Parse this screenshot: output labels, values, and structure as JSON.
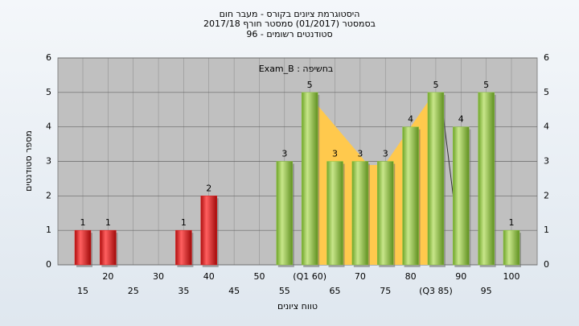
{
  "chart_data": {
    "type": "bar",
    "title": "היסטוגרמת ציונים בקורס - מעבר חום",
    "subtitle": "בסמסטר  (01/2017)  סמסטר חורף 2017/18",
    "subtitle2": "סטודנטים רשומים - 96",
    "annotation": "בחשיפה : Exam_B",
    "ylabel": "מספר סטודנטים",
    "xlabel": "טווח ציונים",
    "categories": [
      "15",
      "20",
      "25",
      "30",
      "35",
      "40",
      "45",
      "50",
      "55",
      "(Q1 60)",
      "65",
      "70",
      "75",
      "80",
      "(Q3 85)",
      "90",
      "95",
      "100"
    ],
    "values": [
      1,
      1,
      0,
      0,
      1,
      2,
      0,
      0,
      3,
      5,
      3,
      3,
      3,
      4,
      5,
      4,
      5,
      1
    ],
    "colors": [
      "#e02020",
      "#e02020",
      "#e02020",
      "#e02020",
      "#e02020",
      "#e02020",
      "#e02020",
      "#e02020",
      "#8cc63f",
      "#8cc63f",
      "#8cc63f",
      "#8cc63f",
      "#8cc63f",
      "#8cc63f",
      "#8cc63f",
      "#8cc63f",
      "#8cc63f",
      "#8cc63f"
    ],
    "ylim": [
      0,
      6
    ],
    "yticks": [
      0,
      1,
      2,
      3,
      4,
      5,
      6
    ],
    "grid": true
  }
}
